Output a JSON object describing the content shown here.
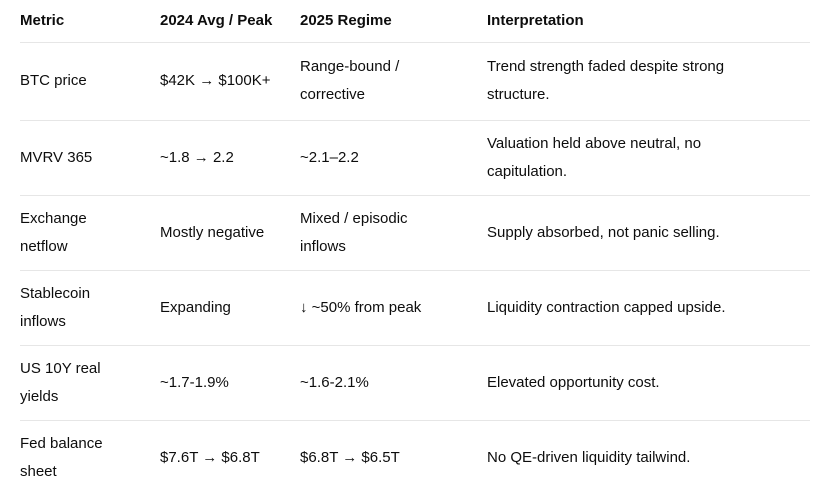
{
  "colors": {
    "background": "#ffffff",
    "text": "#0d0d0d",
    "divider": "#e6e6e6"
  },
  "table": {
    "columns": [
      "Metric",
      "2024 Avg / Peak",
      "2025 Regime",
      "Interpretation"
    ],
    "rows": [
      {
        "metric": "BTC price",
        "avg_peak": "$42K → $100K+",
        "regime": "Range-bound /\ncorrective",
        "interpretation": "Trend strength faded despite strong\nstructure."
      },
      {
        "metric": "MVRV 365",
        "avg_peak": "~1.8 → 2.2",
        "regime": "~2.1–2.2",
        "interpretation": "Valuation held above neutral, no\ncapitulation."
      },
      {
        "metric": "Exchange\nnetflow",
        "avg_peak": "Mostly negative",
        "regime": "Mixed / episodic\ninflows",
        "interpretation": "Supply absorbed, not panic selling."
      },
      {
        "metric": "Stablecoin\ninflows",
        "avg_peak": "Expanding",
        "regime": "↓ ~50% from peak",
        "interpretation": "Liquidity contraction capped upside."
      },
      {
        "metric": "US 10Y real\nyields",
        "avg_peak": "~1.7-1.9%",
        "regime": "~1.6-2.1%",
        "interpretation": "Elevated opportunity cost."
      },
      {
        "metric": "Fed balance\nsheet",
        "avg_peak": "$7.6T → $6.8T",
        "regime": "$6.8T → $6.5T",
        "interpretation": "No QE-driven liquidity tailwind."
      }
    ]
  }
}
